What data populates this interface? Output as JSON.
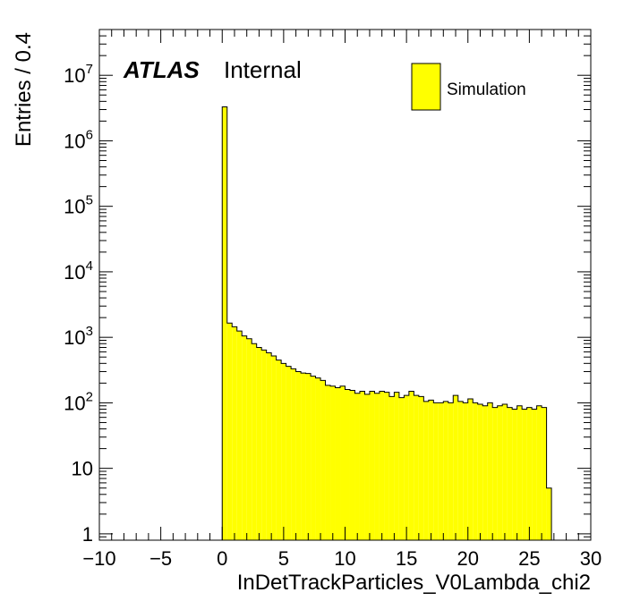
{
  "chart_data": {
    "type": "histogram",
    "xlabel": "InDetTrackParticles_V0Lambda_chi2",
    "ylabel": "Entries / 0.4",
    "xlim": [
      -10,
      30
    ],
    "ylim": [
      0.8,
      50000000
    ],
    "y_scale": "log",
    "grid": false,
    "bin_width": 0.4,
    "x_ticks": [
      -10,
      -5,
      0,
      5,
      10,
      15,
      20,
      25,
      30
    ],
    "x_tick_labels": [
      "−10",
      "−5",
      "0",
      "5",
      "10",
      "15",
      "20",
      "25",
      "30"
    ],
    "y_ticks": [
      1,
      10,
      100,
      1000,
      10000,
      100000,
      1000000,
      10000000
    ],
    "y_tick_labels": [
      {
        "base": "1",
        "exp": ""
      },
      {
        "base": "10",
        "exp": ""
      },
      {
        "base": "10",
        "exp": "2"
      },
      {
        "base": "10",
        "exp": "3"
      },
      {
        "base": "10",
        "exp": "4"
      },
      {
        "base": "10",
        "exp": "5"
      },
      {
        "base": "10",
        "exp": "6"
      },
      {
        "base": "10",
        "exp": "7"
      }
    ],
    "atlas_label": "ATLAS",
    "atlas_sub": "Internal",
    "legend": {
      "position": "top-right",
      "entries": [
        {
          "name": "Simulation",
          "color": "#ffff00"
        }
      ]
    },
    "series": [
      {
        "name": "Simulation",
        "color": "#ffff00",
        "edge_color": "#000000",
        "bin_start": 0.0,
        "values": [
          3300000,
          1650,
          1450,
          1250,
          1050,
          950,
          800,
          700,
          640,
          580,
          520,
          450,
          400,
          360,
          330,
          300,
          285,
          280,
          255,
          240,
          220,
          185,
          180,
          170,
          180,
          160,
          155,
          140,
          150,
          135,
          150,
          140,
          150,
          145,
          125,
          145,
          120,
          130,
          150,
          130,
          125,
          105,
          110,
          100,
          100,
          105,
          100,
          130,
          105,
          100,
          115,
          100,
          95,
          90,
          100,
          85,
          90,
          95,
          85,
          80,
          90,
          80,
          85,
          80,
          90,
          85,
          5
        ]
      }
    ]
  }
}
